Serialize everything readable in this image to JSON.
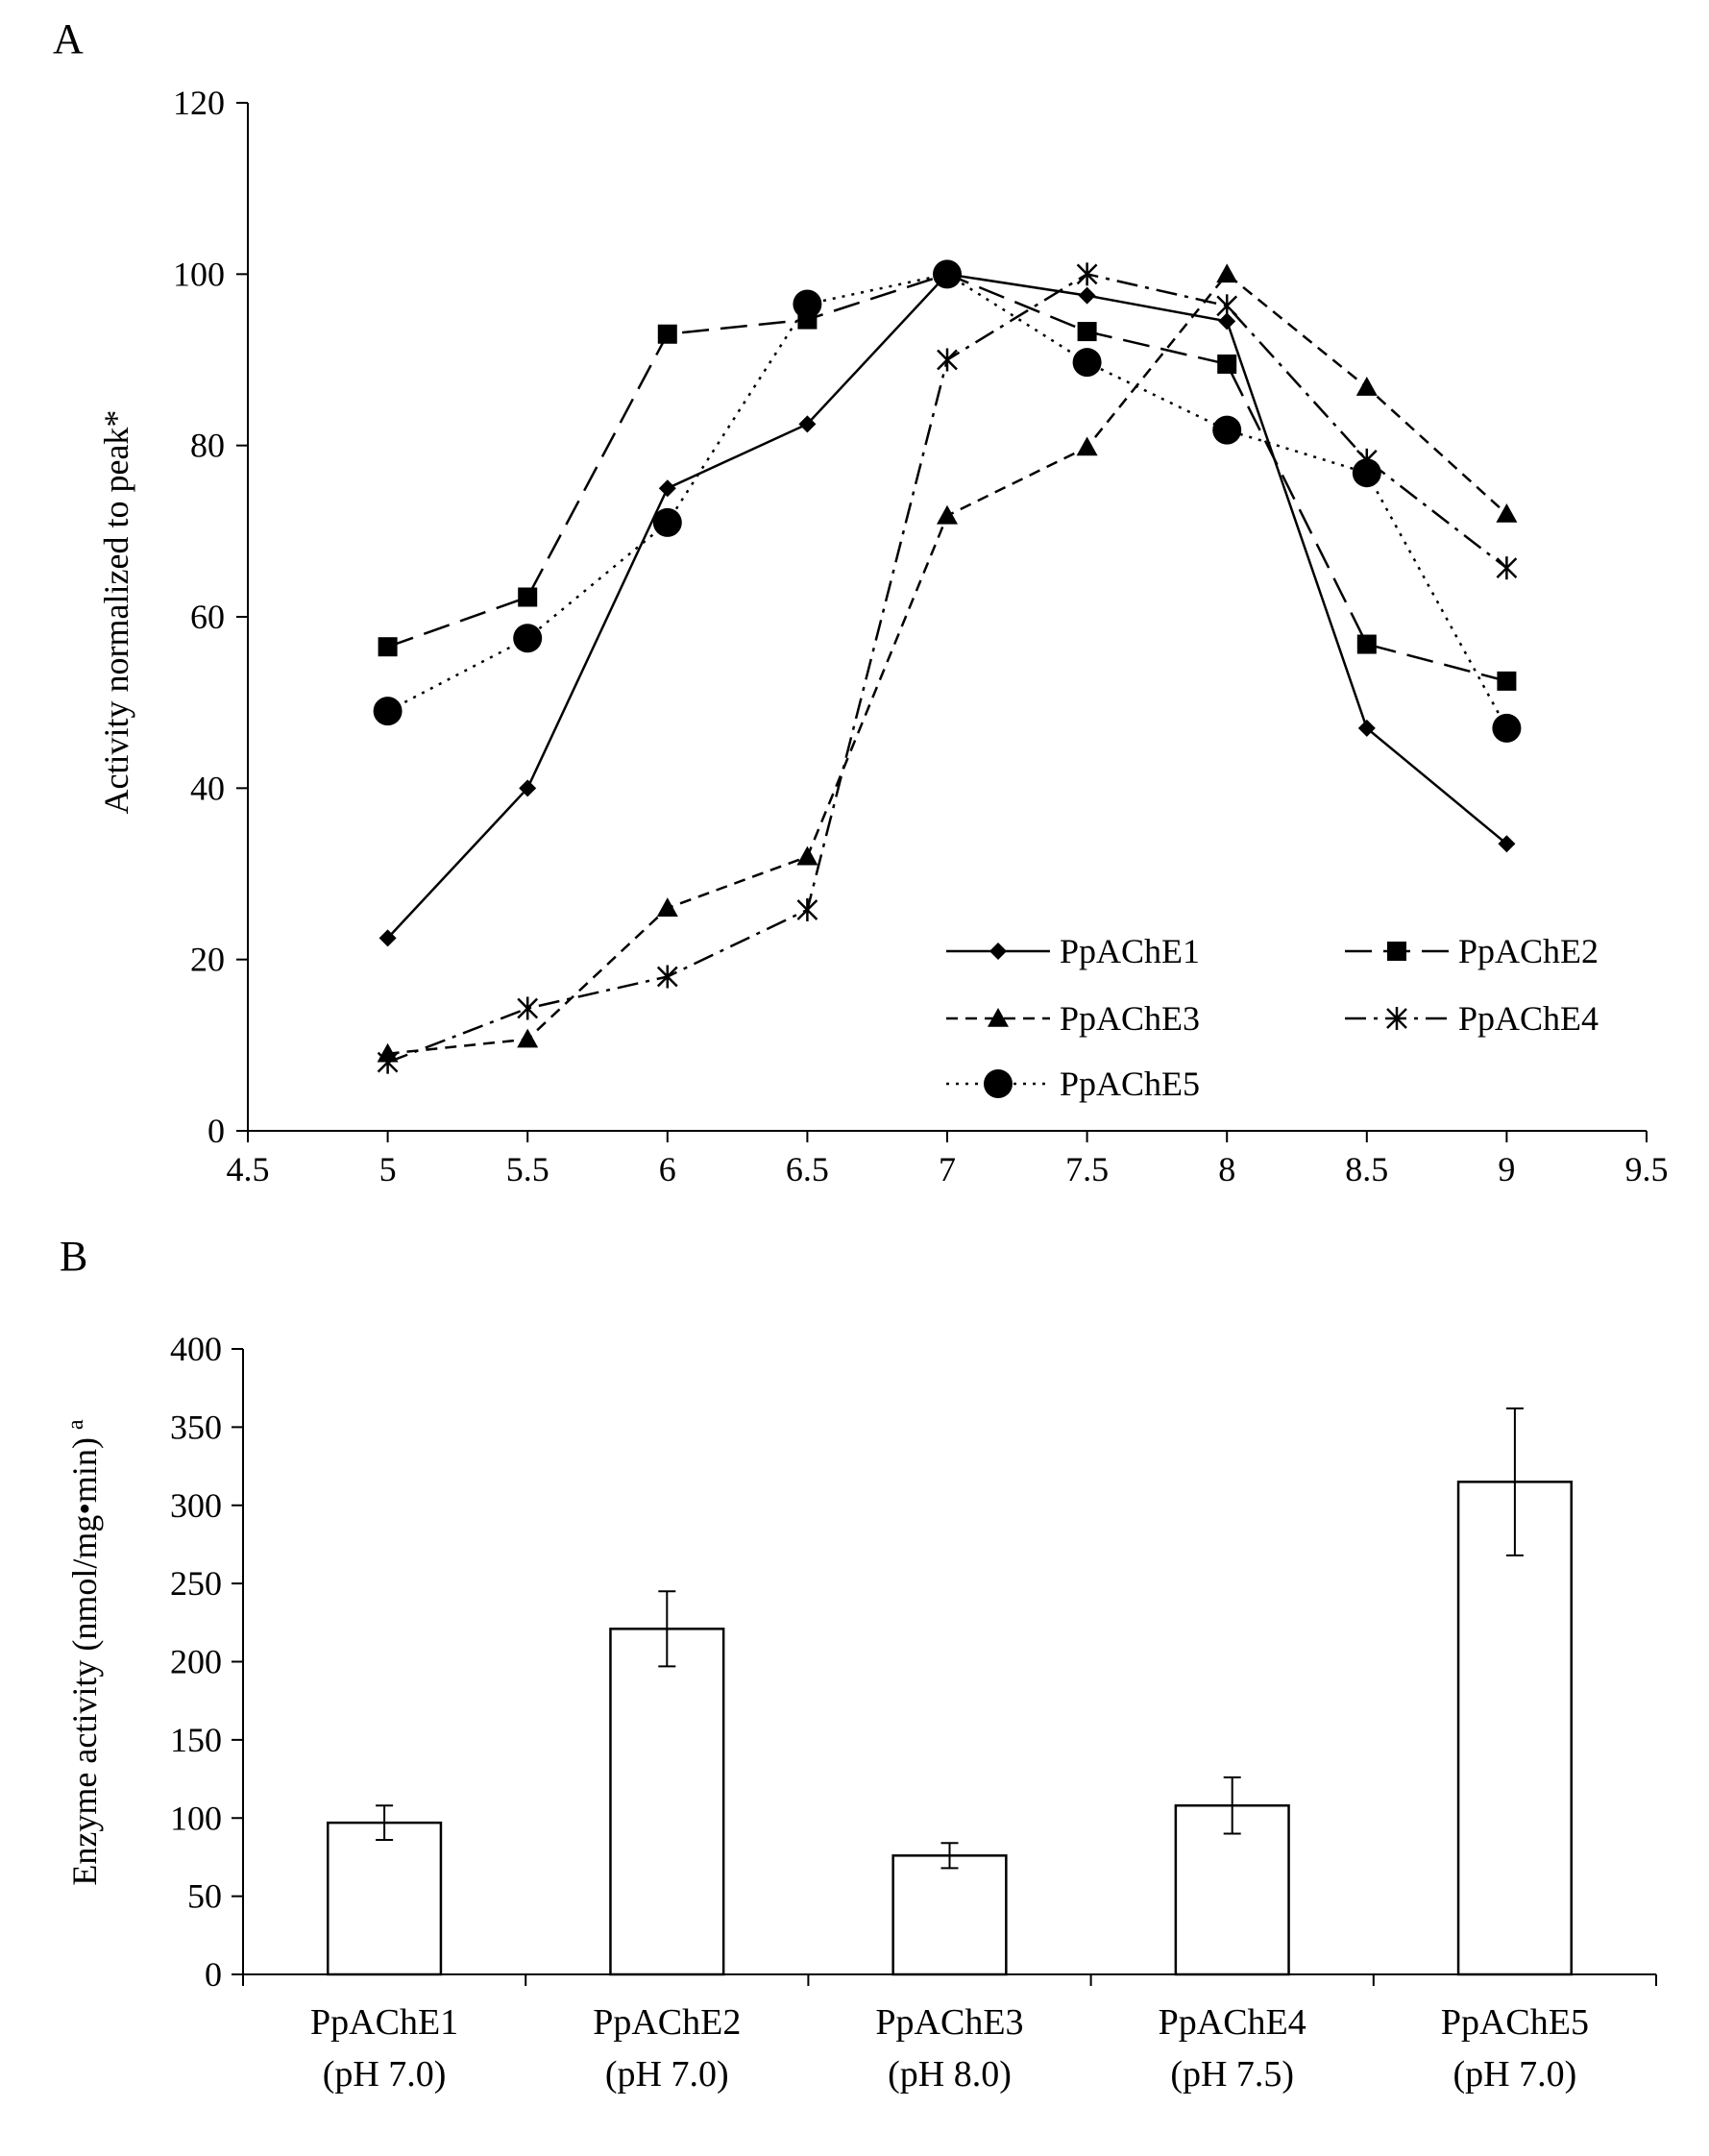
{
  "chart_data": [
    {
      "panel_label": "A",
      "type": "line",
      "ylabel": "Activity normalized to peak*",
      "xlabel": "",
      "xlim": [
        4.5,
        9.5
      ],
      "ylim": [
        0,
        120
      ],
      "x_ticks": [
        "4.5",
        "5",
        "5.5",
        "6",
        "6.5",
        "7",
        "7.5",
        "8",
        "8.5",
        "9",
        "9.5"
      ],
      "y_ticks": [
        "0",
        "20",
        "40",
        "60",
        "80",
        "100",
        "120"
      ],
      "x": [
        5,
        5.5,
        6,
        6.5,
        7,
        7.5,
        8,
        8.5,
        9
      ],
      "grid": false,
      "legend_position": "bottom-right",
      "series": [
        {
          "name": "PpAChE1",
          "marker": "diamond",
          "dash": "solid",
          "values": [
            22.5,
            40,
            75,
            82.5,
            100,
            97.5,
            94.5,
            47,
            33.5
          ]
        },
        {
          "name": "PpAChE2",
          "marker": "square",
          "dash": "longdash",
          "values": [
            56.5,
            62.3,
            93,
            94.7,
            100,
            93.3,
            89.5,
            56.8,
            52.5
          ]
        },
        {
          "name": "PpAChE3",
          "marker": "triangle",
          "dash": "dash",
          "values": [
            9,
            10.7,
            26,
            32,
            71.8,
            79.8,
            100,
            86.8,
            72
          ]
        },
        {
          "name": "PpAChE4",
          "marker": "asterisk",
          "dash": "dashdot",
          "values": [
            8,
            14.3,
            18,
            25.8,
            90,
            100,
            96.3,
            78.3,
            65.7
          ]
        },
        {
          "name": "PpAChE5",
          "marker": "circle",
          "dash": "dot",
          "values": [
            49,
            57.5,
            71,
            96.5,
            100,
            89.7,
            81.8,
            76.8,
            47
          ]
        }
      ]
    },
    {
      "panel_label": "B",
      "type": "bar",
      "ylabel": "Enzyme activity (nmol/mg•min)",
      "ylabel_superscript": "a",
      "xlabel": "",
      "ylim": [
        0,
        400
      ],
      "y_ticks": [
        "0",
        "50",
        "100",
        "150",
        "200",
        "250",
        "300",
        "350",
        "400"
      ],
      "categories": [
        {
          "name": "PpAChE1",
          "condition": "(pH 7.0)"
        },
        {
          "name": "PpAChE2",
          "condition": "(pH 7.0)"
        },
        {
          "name": "PpAChE3",
          "condition": "(pH 8.0)"
        },
        {
          "name": "PpAChE4",
          "condition": "(pH 7.5)"
        },
        {
          "name": "PpAChE5",
          "condition": "(pH 7.0)"
        }
      ],
      "values": [
        97,
        221,
        76,
        108,
        315
      ],
      "errors": [
        11,
        24,
        8,
        18,
        47
      ],
      "grid": false
    }
  ]
}
